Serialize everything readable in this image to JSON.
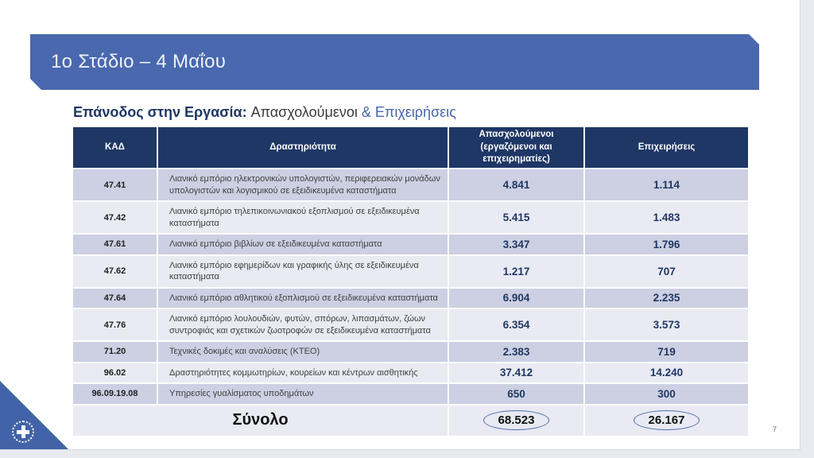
{
  "banner": {
    "title": "1ο Στάδιο – 4 Μαΐου"
  },
  "heading": {
    "bold_part": "Επάνοδος στην Εργασία: ",
    "dark_part": "Απασχολούμενοι ",
    "blue_part": "& Επιχειρήσεις"
  },
  "table": {
    "columns": [
      "ΚΑΔ",
      "Δραστηριότητα",
      "Απασχολούμενοι (εργαζόμενοι και επιχειρηματίες)",
      "Επιχειρήσεις"
    ],
    "rows": [
      {
        "kad": "47.41",
        "activity": "Λιανικό εμπόριο ηλεκτρονικών υπολογιστών, περιφερειακών μονάδων υπολογιστών και λογισμικού σε εξειδικευμένα καταστήματα",
        "employees": "4.841",
        "businesses": "1.114"
      },
      {
        "kad": "47.42",
        "activity": "Λιανικό εμπόριο τηλεπικοινωνιακού εξοπλισμού σε εξειδικευμένα καταστήματα",
        "employees": "5.415",
        "businesses": "1.483"
      },
      {
        "kad": "47.61",
        "activity": "Λιανικό εμπόριο βιβλίων σε εξειδικευμένα καταστήματα",
        "employees": "3.347",
        "businesses": "1.796"
      },
      {
        "kad": "47.62",
        "activity": "Λιανικό εμπόριο εφημερίδων και γραφικής ύλης σε εξειδικευμένα καταστήματα",
        "employees": "1.217",
        "businesses": "707"
      },
      {
        "kad": "47.64",
        "activity": "Λιανικό εμπόριο αθλητικού εξοπλισμού σε εξειδικευμένα καταστήματα",
        "employees": "6.904",
        "businesses": "2.235"
      },
      {
        "kad": "47.76",
        "activity": "Λιανικό εμπόριο λουλουδιών, φυτών, σπόρων, λιπασμάτων, ζώων συντροφιάς και σχετικών ζωοτροφών σε εξειδικευμένα καταστήματα",
        "employees": "6.354",
        "businesses": "3.573"
      },
      {
        "kad": "71.20",
        "activity": "Τεχνικές δοκιμές και αναλύσεις (ΚΤΕΟ)",
        "employees": "2.383",
        "businesses": "719"
      },
      {
        "kad": "96.02",
        "activity": "Δραστηριότητες κομμωτηρίων, κουρείων και κέντρων αισθητικής",
        "employees": "37.412",
        "businesses": "14.240"
      },
      {
        "kad": "96.09.19.08",
        "activity": "Υπηρεσίες γυαλίσματος υποδημάτων",
        "employees": "650",
        "businesses": "300"
      }
    ],
    "total": {
      "label": "Σύνολο",
      "employees": "68.523",
      "businesses": "26.167"
    }
  },
  "footer": {
    "page_number": "7"
  },
  "icons": {
    "corner_emblem": "greek-government-emblem-icon"
  },
  "colors": {
    "banner_blue": "#4968ae",
    "header_navy": "#1e3765",
    "row_dark": "#ccd0e2",
    "row_light": "#e9eaf2",
    "value_navy": "#1f3864",
    "heading_blue": "#4565ac",
    "circle_outline": "#4f6cb0"
  }
}
